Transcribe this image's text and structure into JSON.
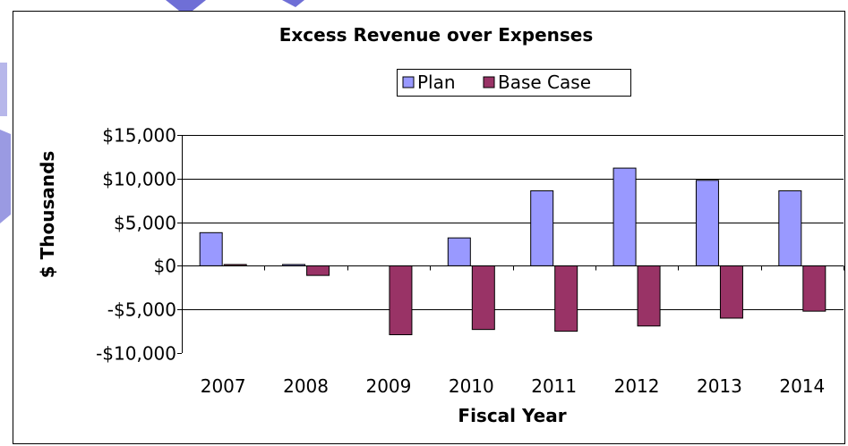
{
  "chart_data": {
    "type": "bar",
    "title": "Excess Revenue over Expenses",
    "xlabel": "Fiscal Year",
    "ylabel": "$ Thousands",
    "categories": [
      "2007",
      "2008",
      "2009",
      "2010",
      "2011",
      "2012",
      "2013",
      "2014"
    ],
    "series": [
      {
        "name": "Plan",
        "color": "#9999ff",
        "values": [
          3800,
          150,
          0,
          3200,
          8600,
          11200,
          9800,
          8600
        ]
      },
      {
        "name": "Base Case",
        "color": "#993366",
        "values": [
          150,
          -1100,
          -7900,
          -7300,
          -7500,
          -6900,
          -6000,
          -5200
        ]
      }
    ],
    "ylim": [
      -10000,
      15000
    ],
    "yticks": [
      15000,
      10000,
      5000,
      0,
      -5000,
      -10000
    ],
    "ytick_labels": [
      "$15,000",
      "$10,000",
      "$5,000",
      "$0",
      "-$5,000",
      "-$10,000"
    ],
    "grid": true,
    "legend_position": "top-center"
  }
}
